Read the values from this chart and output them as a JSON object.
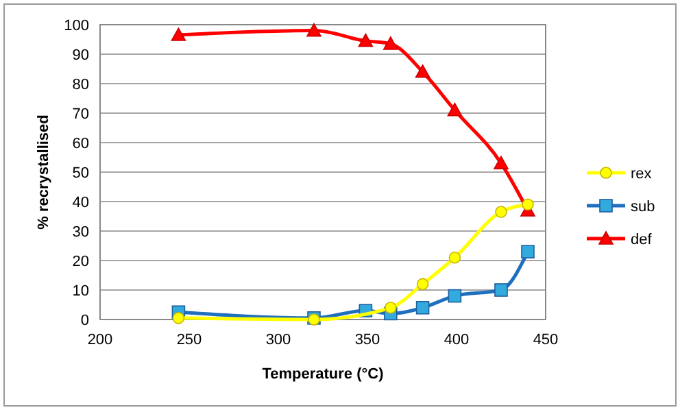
{
  "chart_data": {
    "type": "line",
    "xlabel": "Temperature (°C)",
    "ylabel": "% recrystallised",
    "x": [
      244,
      320,
      349,
      363,
      381,
      399,
      425,
      440
    ],
    "series": [
      {
        "name": "rex",
        "color": "#ffff00",
        "marker": "circle",
        "values": [
          0.5,
          0,
          null,
          4,
          12,
          21,
          36.5,
          39
        ]
      },
      {
        "name": "sub",
        "color": "#1f6fbf",
        "marker": "square",
        "values": [
          2.5,
          0.5,
          3,
          2,
          4,
          8,
          10,
          23
        ]
      },
      {
        "name": "def",
        "color": "#ff0000",
        "marker": "triangle",
        "values": [
          96.5,
          98,
          94.5,
          93.5,
          84,
          71,
          53,
          37
        ]
      }
    ],
    "xlim": [
      200,
      450
    ],
    "xticks": [
      200,
      250,
      300,
      350,
      400,
      450
    ],
    "ylim": [
      0,
      100
    ],
    "yticks": [
      0,
      10,
      20,
      30,
      40,
      50,
      60,
      70,
      80,
      90,
      100
    ],
    "grid": "y",
    "legend": "right"
  }
}
